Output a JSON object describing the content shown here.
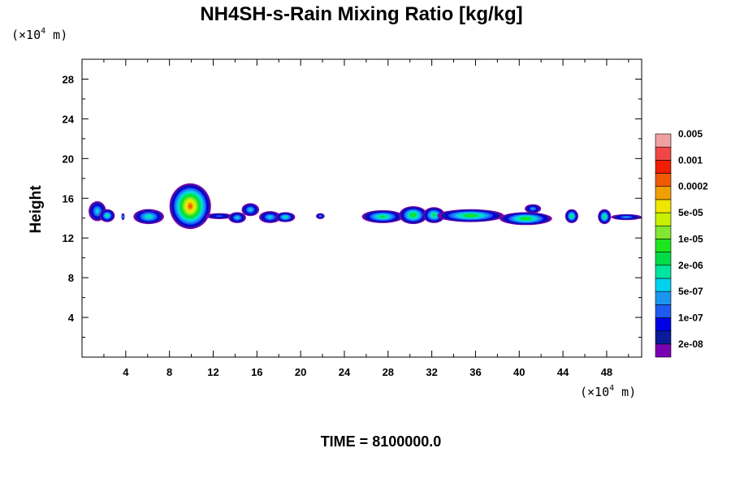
{
  "chart_data": {
    "type": "heatmap",
    "title": "NH4SH-s-Rain Mixing Ratio [kg/kg]",
    "ylabel": "Height",
    "x_unit": {
      "prefix": "(×10",
      "exp": "4",
      "suffix": " m)"
    },
    "y_unit": {
      "prefix": "(×10",
      "exp": "4",
      "suffix": " m)"
    },
    "footer": "TIME = 8100000.0",
    "xlim": [
      0,
      51.2
    ],
    "ylim": [
      0,
      30
    ],
    "x_ticks": [
      4,
      8,
      12,
      16,
      20,
      24,
      28,
      32,
      36,
      40,
      44,
      48
    ],
    "y_ticks": [
      4,
      8,
      12,
      16,
      20,
      24,
      28
    ],
    "colorbar": {
      "colors": [
        "#7b00b4",
        "#0a1a9a",
        "#0000e6",
        "#1e5af0",
        "#1a96f0",
        "#00d2f0",
        "#00e6a0",
        "#00dc46",
        "#1ee61e",
        "#82e632",
        "#c8f000",
        "#f0e600",
        "#f0a000",
        "#f05a00",
        "#f01e00",
        "#f04646",
        "#f0a0a0"
      ],
      "labels": [
        {
          "text": "2e-08",
          "level": 1
        },
        {
          "text": "1e-07",
          "level": 3
        },
        {
          "text": "5e-07",
          "level": 5
        },
        {
          "text": "2e-06",
          "level": 7
        },
        {
          "text": "1e-05",
          "level": 9
        },
        {
          "text": "5e-05",
          "level": 11
        },
        {
          "text": "0.0002",
          "level": 13
        },
        {
          "text": "0.001",
          "level": 15
        },
        {
          "text": "0.005",
          "level": 17
        }
      ]
    },
    "cells": [
      {
        "x": [
          0.6,
          2.2
        ],
        "y": [
          13.7,
          15.7
        ],
        "peak": 6
      },
      {
        "x": [
          1.6,
          3.0
        ],
        "y": [
          13.6,
          14.9
        ],
        "peak": 7
      },
      {
        "x": [
          3.6,
          3.9
        ],
        "y": [
          13.8,
          14.5
        ],
        "peak": 6
      },
      {
        "x": [
          4.7,
          7.5
        ],
        "y": [
          13.4,
          14.9
        ],
        "peak": 7
      },
      {
        "x": [
          5.4,
          6.7
        ],
        "y": [
          14.6,
          14.9
        ],
        "peak": 3
      },
      {
        "x": [
          8.0,
          11.8
        ],
        "y": [
          12.9,
          17.5
        ],
        "peak": 14
      },
      {
        "x": [
          11.3,
          13.8
        ],
        "y": [
          13.9,
          14.5
        ],
        "peak": 4
      },
      {
        "x": [
          13.4,
          15.0
        ],
        "y": [
          13.5,
          14.6
        ],
        "peak": 6
      },
      {
        "x": [
          14.6,
          16.2
        ],
        "y": [
          14.2,
          15.5
        ],
        "peak": 6
      },
      {
        "x": [
          16.2,
          18.2
        ],
        "y": [
          13.5,
          14.7
        ],
        "peak": 6
      },
      {
        "x": [
          17.7,
          19.5
        ],
        "y": [
          13.6,
          14.6
        ],
        "peak": 7
      },
      {
        "x": [
          21.4,
          22.2
        ],
        "y": [
          13.9,
          14.5
        ],
        "peak": 5
      },
      {
        "x": [
          25.6,
          29.4
        ],
        "y": [
          13.5,
          14.8
        ],
        "peak": 8
      },
      {
        "x": [
          29.0,
          31.6
        ],
        "y": [
          13.4,
          15.2
        ],
        "peak": 9
      },
      {
        "x": [
          31.2,
          33.2
        ],
        "y": [
          13.5,
          15.1
        ],
        "peak": 8
      },
      {
        "x": [
          32.5,
          38.6
        ],
        "y": [
          13.6,
          14.9
        ],
        "peak": 9
      },
      {
        "x": [
          38.2,
          43.0
        ],
        "y": [
          13.3,
          14.6
        ],
        "peak": 9
      },
      {
        "x": [
          40.5,
          42.0
        ],
        "y": [
          14.5,
          15.4
        ],
        "peak": 5
      },
      {
        "x": [
          44.2,
          45.4
        ],
        "y": [
          13.5,
          14.9
        ],
        "peak": 8
      },
      {
        "x": [
          47.2,
          48.4
        ],
        "y": [
          13.4,
          14.9
        ],
        "peak": 8
      },
      {
        "x": [
          48.4,
          51.2
        ],
        "y": [
          13.8,
          14.4
        ],
        "peak": 5
      }
    ]
  }
}
